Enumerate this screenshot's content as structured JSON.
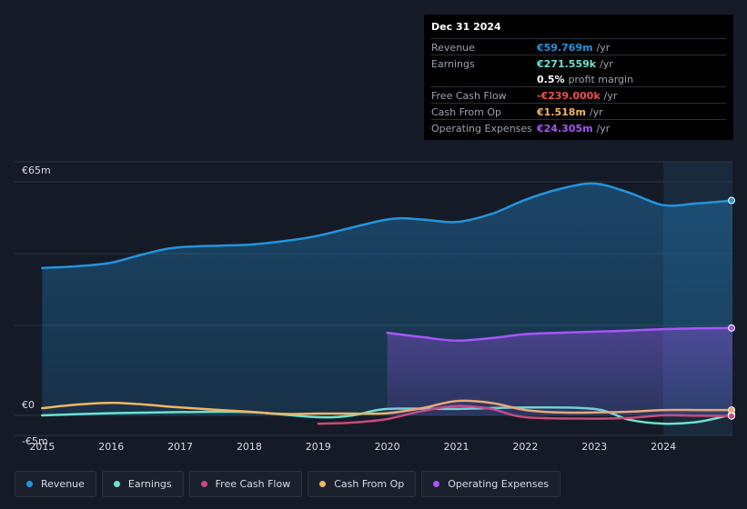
{
  "tooltip": {
    "date": "Dec 31 2024",
    "rows": [
      {
        "label": "Revenue",
        "value": "€59.769m",
        "unit": "/yr",
        "color": "#2394df"
      },
      {
        "label": "Earnings",
        "value": "€271.559k",
        "unit": "/yr",
        "color": "#6be2cf"
      },
      {
        "label": "",
        "value": "0.5%",
        "unit": "profit margin",
        "color": "#ffffff"
      },
      {
        "label": "Free Cash Flow",
        "value": "-€239.000k",
        "unit": "/yr",
        "color": "#ef4f4f"
      },
      {
        "label": "Cash From Op",
        "value": "€1.518m",
        "unit": "/yr",
        "color": "#f3b562"
      },
      {
        "label": "Operating Expenses",
        "value": "€24.305m",
        "unit": "/yr",
        "color": "#a855f7"
      }
    ]
  },
  "chart_data": {
    "type": "line",
    "title": "",
    "ylabel": "",
    "xlabel": "",
    "ylim": [
      -5,
      65
    ],
    "y_tick_labels": [
      "€65m",
      "€0",
      "-€5m"
    ],
    "y_ticks": [
      65,
      0,
      -5
    ],
    "x_tick_labels": [
      "2015",
      "2016",
      "2017",
      "2018",
      "2019",
      "2020",
      "2021",
      "2022",
      "2023",
      "2024"
    ],
    "x_ticks": [
      2015,
      2016,
      2017,
      2018,
      2019,
      2020,
      2021,
      2022,
      2023,
      2024
    ],
    "xlim": [
      2014.6,
      2025.0
    ],
    "forecast_start": 2024.0,
    "series": [
      {
        "name": "Revenue",
        "color": "#2394df",
        "fill": true,
        "x": [
          2015,
          2015.5,
          2016,
          2016.5,
          2017,
          2018,
          2018.5,
          2019,
          2020,
          2020.5,
          2021,
          2021.5,
          2022,
          2022.5,
          2023,
          2023.5,
          2024,
          2024.5,
          2025
        ],
        "y": [
          41,
          41.5,
          42.5,
          45,
          46.8,
          47.5,
          48.5,
          50,
          54.5,
          54.5,
          53.8,
          56,
          60,
          63,
          64.5,
          62,
          58.5,
          59,
          59.8
        ]
      },
      {
        "name": "Earnings",
        "color": "#6be2cf",
        "fill": false,
        "x": [
          2015,
          2016,
          2017,
          2018,
          2019,
          2019.5,
          2020,
          2021,
          2022,
          2023,
          2023.5,
          2024,
          2024.5,
          2025
        ],
        "y": [
          0,
          0.6,
          0.9,
          0.9,
          -0.5,
          0,
          1.8,
          1.8,
          2.2,
          1.8,
          -1.2,
          -2.3,
          -1.8,
          0.3
        ]
      },
      {
        "name": "Free Cash Flow",
        "color": "#c94b7c",
        "fill": false,
        "x": [
          2019,
          2019.5,
          2020,
          2020.5,
          2021,
          2021.5,
          2022,
          2023,
          2023.5,
          2024,
          2024.5,
          2025
        ],
        "y": [
          -2.3,
          -2,
          -1,
          1.2,
          2.6,
          1.8,
          -0.5,
          -0.9,
          -0.7,
          0,
          -0.1,
          -0.2
        ]
      },
      {
        "name": "Cash From Op",
        "color": "#f3b562",
        "fill": false,
        "x": [
          2015,
          2015.5,
          2016,
          2016.5,
          2017,
          2018,
          2018.5,
          2019,
          2019.5,
          2020,
          2020.5,
          2021,
          2021.5,
          2022,
          2022.5,
          2023,
          2023.5,
          2024,
          2024.5,
          2025
        ],
        "y": [
          2,
          3,
          3.5,
          3,
          2.2,
          1,
          0.4,
          0.5,
          0.5,
          0.6,
          2,
          4,
          3.5,
          1.5,
          0.8,
          0.8,
          1,
          1.5,
          1.5,
          1.5
        ]
      },
      {
        "name": "Operating Expenses",
        "color": "#a855f7",
        "fill": true,
        "x": [
          2020,
          2020.5,
          2021,
          2021.5,
          2022,
          2022.5,
          2023,
          2023.5,
          2024,
          2024.5,
          2025
        ],
        "y": [
          23,
          21.8,
          20.8,
          21.5,
          22.6,
          23,
          23.3,
          23.6,
          24,
          24.2,
          24.3
        ]
      }
    ]
  },
  "legend": [
    {
      "label": "Revenue",
      "color": "#2394df"
    },
    {
      "label": "Earnings",
      "color": "#6be2cf"
    },
    {
      "label": "Free Cash Flow",
      "color": "#c94b7c"
    },
    {
      "label": "Cash From Op",
      "color": "#f3b562"
    },
    {
      "label": "Operating Expenses",
      "color": "#a855f7"
    }
  ]
}
